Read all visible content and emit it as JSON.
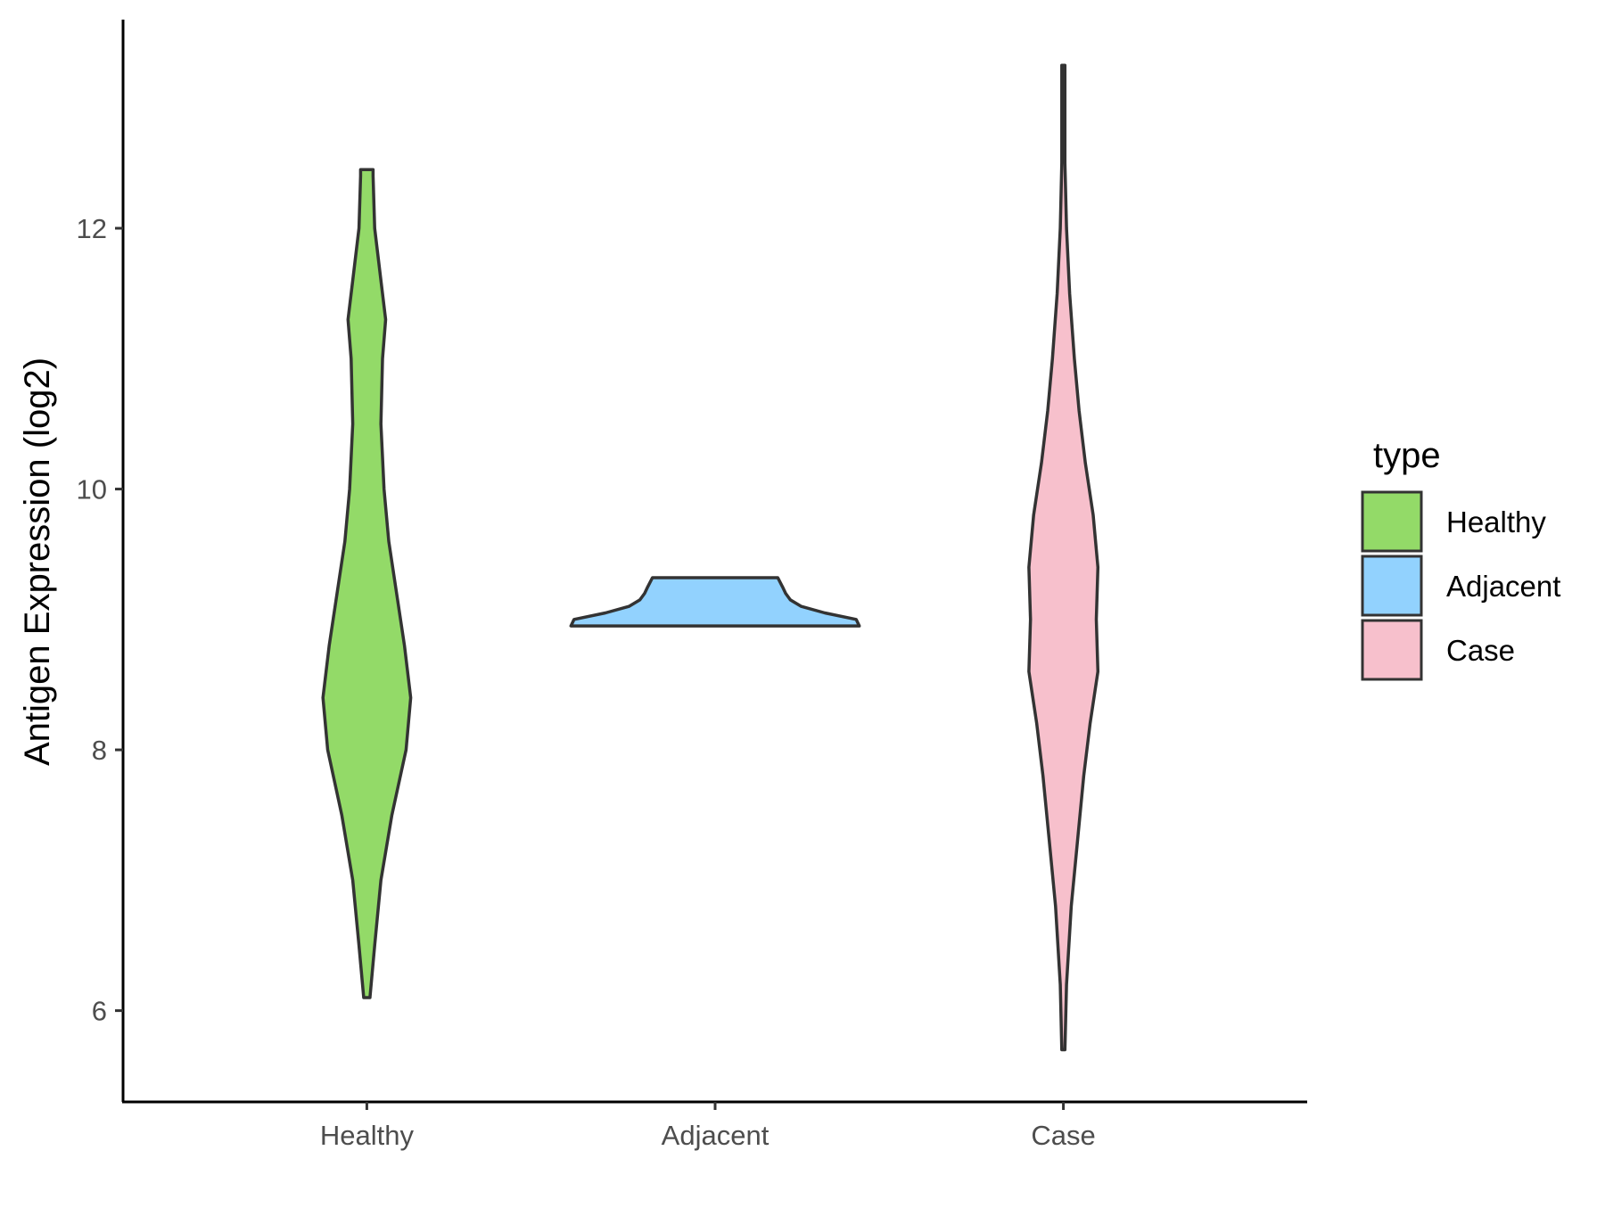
{
  "chart_data": {
    "type": "violin",
    "title": "",
    "xlabel": "",
    "ylabel": "Antigen Expression (log2)",
    "ylim": [
      5.3,
      13.6
    ],
    "y_ticks": [
      6,
      8,
      10,
      12
    ],
    "y_tick_labels": [
      "6",
      "8",
      "10",
      "12"
    ],
    "categories": [
      "Healthy",
      "Adjacent",
      "Case"
    ],
    "legend": {
      "title": "type",
      "position": "right",
      "entries": [
        "Healthy",
        "Adjacent",
        "Case"
      ]
    },
    "grid": false,
    "series": [
      {
        "name": "Healthy",
        "color": "#93DA68",
        "min": 6.1,
        "max": 12.45,
        "density": [
          [
            6.1,
            0.02
          ],
          [
            6.5,
            0.05
          ],
          [
            7.0,
            0.09
          ],
          [
            7.5,
            0.16
          ],
          [
            8.0,
            0.25
          ],
          [
            8.4,
            0.28
          ],
          [
            8.8,
            0.24
          ],
          [
            9.2,
            0.19
          ],
          [
            9.6,
            0.14
          ],
          [
            10.0,
            0.11
          ],
          [
            10.5,
            0.09
          ],
          [
            11.0,
            0.1
          ],
          [
            11.3,
            0.12
          ],
          [
            11.6,
            0.09
          ],
          [
            12.0,
            0.05
          ],
          [
            12.4,
            0.04
          ],
          [
            12.45,
            0.04
          ]
        ]
      },
      {
        "name": "Adjacent",
        "color": "#92D2FE",
        "min": 8.95,
        "max": 9.32,
        "density": [
          [
            8.95,
            0.92
          ],
          [
            9.0,
            0.9
          ],
          [
            9.05,
            0.7
          ],
          [
            9.1,
            0.55
          ],
          [
            9.15,
            0.48
          ],
          [
            9.2,
            0.45
          ],
          [
            9.25,
            0.43
          ],
          [
            9.32,
            0.4
          ]
        ]
      },
      {
        "name": "Case",
        "color": "#F7C0CC",
        "min": 5.7,
        "max": 13.25,
        "density": [
          [
            5.7,
            0.01
          ],
          [
            6.2,
            0.02
          ],
          [
            6.8,
            0.05
          ],
          [
            7.3,
            0.09
          ],
          [
            7.8,
            0.13
          ],
          [
            8.2,
            0.17
          ],
          [
            8.6,
            0.22
          ],
          [
            9.0,
            0.21
          ],
          [
            9.4,
            0.22
          ],
          [
            9.8,
            0.19
          ],
          [
            10.2,
            0.14
          ],
          [
            10.6,
            0.1
          ],
          [
            11.0,
            0.07
          ],
          [
            11.5,
            0.04
          ],
          [
            12.0,
            0.02
          ],
          [
            12.5,
            0.01
          ],
          [
            13.25,
            0.01
          ]
        ]
      }
    ]
  }
}
